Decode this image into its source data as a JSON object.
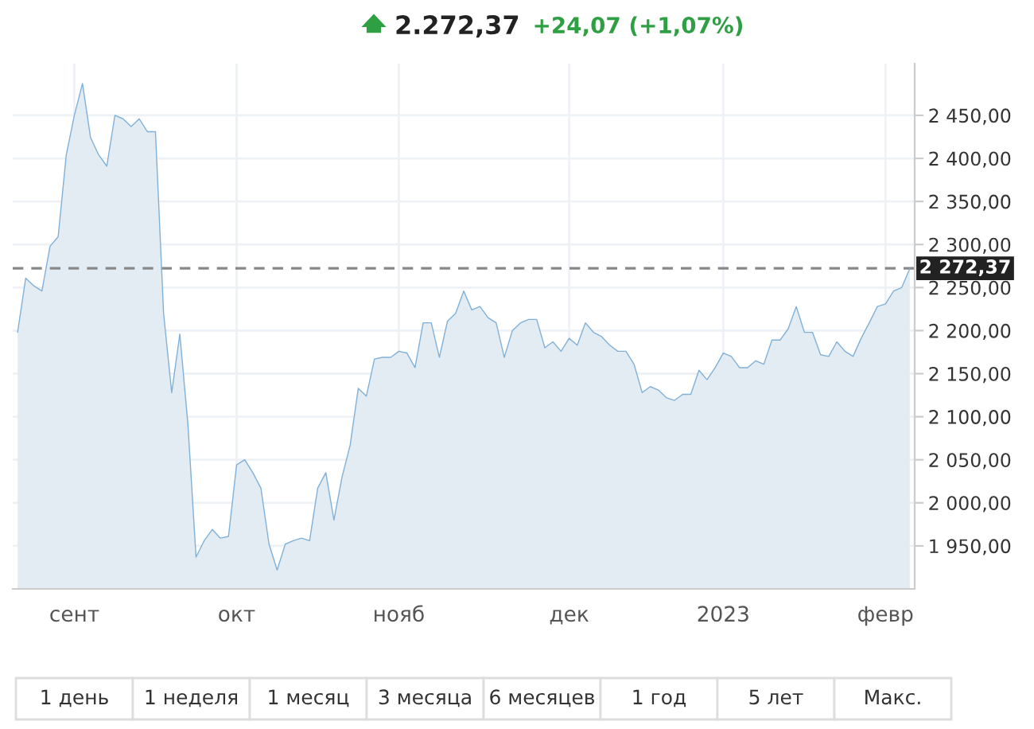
{
  "chart_data": {
    "type": "area",
    "title": "2.272,37",
    "subtitle": "+24,07 (+1,07%)",
    "categories": [
      null,
      null,
      null,
      null,
      null,
      null,
      null,
      "сент",
      null,
      null,
      null,
      null,
      null,
      null,
      null,
      null,
      null,
      null,
      null,
      null,
      null,
      null,
      null,
      null,
      null,
      null,
      null,
      "окт",
      null,
      null,
      null,
      null,
      null,
      null,
      null,
      null,
      null,
      null,
      null,
      null,
      null,
      null,
      null,
      null,
      null,
      null,
      null,
      "нояб",
      null,
      null,
      null,
      null,
      null,
      null,
      null,
      null,
      null,
      null,
      null,
      null,
      null,
      null,
      null,
      null,
      null,
      null,
      null,
      null,
      "дек",
      null,
      null,
      null,
      null,
      null,
      null,
      null,
      null,
      null,
      null,
      null,
      null,
      null,
      null,
      null,
      null,
      null,
      null,
      "2023",
      null,
      null,
      null,
      null,
      null,
      null,
      null,
      null,
      null,
      null,
      null,
      null,
      null,
      null,
      null,
      null,
      null,
      null,
      null,
      "февр",
      null,
      null,
      null
    ],
    "series": [
      {
        "color": "#7fb0d8",
        "values": [
          2198,
          2261,
          2252,
          2246,
          2298,
          2309,
          2404,
          2450,
          2487,
          2424,
          2404,
          2391,
          2450,
          2446,
          2437,
          2446,
          2431,
          2431,
          2220,
          2128,
          2196,
          2091,
          1937,
          1956,
          1969,
          1959,
          1961,
          2044,
          2050,
          2035,
          2017,
          1952,
          1922,
          1952,
          1956,
          1959,
          1956,
          2017,
          2035,
          1980,
          2030,
          2067,
          2133,
          2124,
          2167,
          2169,
          2169,
          2176,
          2174,
          2157,
          2209,
          2209,
          2169,
          2211,
          2220,
          2246,
          2224,
          2228,
          2215,
          2209,
          2169,
          2200,
          2209,
          2213,
          2213,
          2180,
          2187,
          2176,
          2191,
          2183,
          2209,
          2198,
          2193,
          2183,
          2176,
          2176,
          2161,
          2128,
          2135,
          2131,
          2122,
          2119,
          2126,
          2126,
          2154,
          2143,
          2157,
          2174,
          2170,
          2157,
          2157,
          2165,
          2161,
          2189,
          2189,
          2202,
          2228,
          2198,
          2198,
          2172,
          2170,
          2187,
          2176,
          2170,
          2191,
          2209,
          2228,
          2231,
          2246,
          2250,
          2272
        ]
      }
    ],
    "ylim": [
      1900,
      2510
    ],
    "yticks": [
      {
        "value": 1950,
        "label": "1 950,00"
      },
      {
        "value": 2000,
        "label": "2 000,00"
      },
      {
        "value": 2050,
        "label": "2 050,00"
      },
      {
        "value": 2100,
        "label": "2 100,00"
      },
      {
        "value": 2150,
        "label": "2 150,00"
      },
      {
        "value": 2200,
        "label": "2 200,00"
      },
      {
        "value": 2250,
        "label": "2 250,00"
      },
      {
        "value": 2300,
        "label": "2 300,00"
      },
      {
        "value": 2350,
        "label": "2 350,00"
      },
      {
        "value": 2400,
        "label": "2 400,00"
      },
      {
        "value": 2450,
        "label": "2 450,00"
      }
    ],
    "ref_lines": [
      {
        "axis": "y",
        "value": 2272.37,
        "label": "2 272,37",
        "color": "#888888",
        "line_style": "dashed"
      }
    ],
    "grid": true,
    "annotations": [
      "1 день",
      "1 неделя",
      "1 месяц",
      "3 месяца",
      "6 месяцев",
      "1 год",
      "5 лет",
      "Макс."
    ]
  }
}
